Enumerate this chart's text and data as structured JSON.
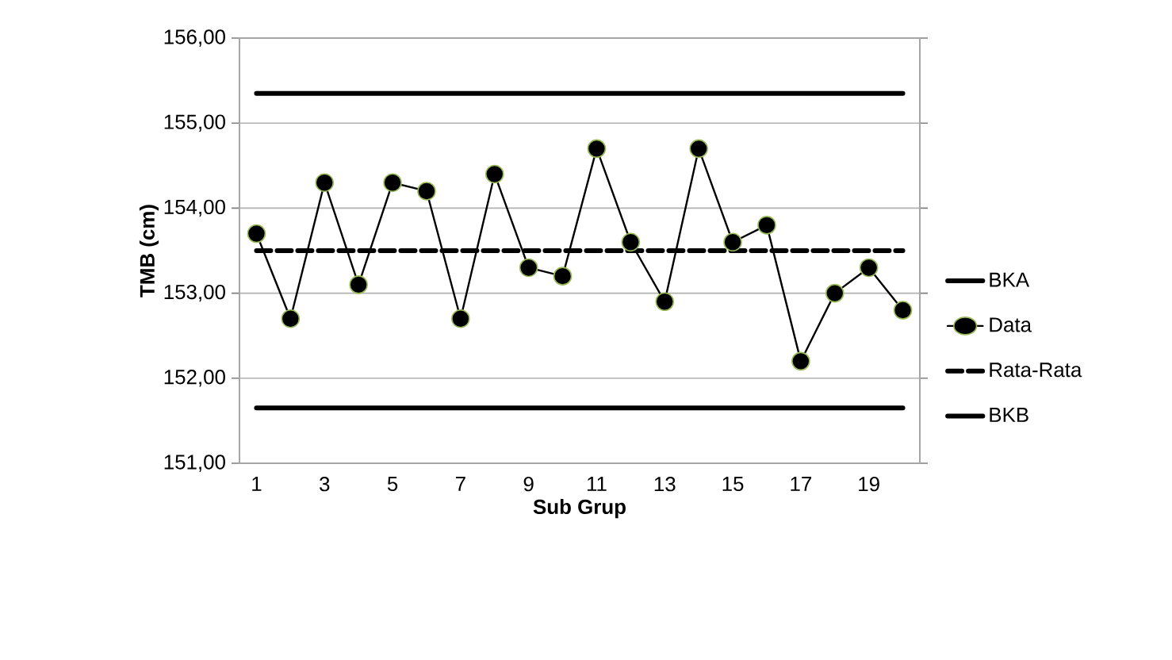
{
  "chart_data": {
    "type": "line",
    "xlabel": "Sub Grup",
    "ylabel": "TMB (cm)",
    "categories": [
      "1",
      null,
      "3",
      null,
      "5",
      null,
      "7",
      null,
      "9",
      null,
      "11",
      null,
      "13",
      null,
      "15",
      null,
      "17",
      null,
      "19",
      null
    ],
    "ylim": [
      151,
      156
    ],
    "yticks": [
      {
        "value": 151,
        "label": "151,00"
      },
      {
        "value": 152,
        "label": "152,00"
      },
      {
        "value": 153,
        "label": "153,00"
      },
      {
        "value": 154,
        "label": "154,00"
      },
      {
        "value": 155,
        "label": "155,00"
      },
      {
        "value": 156,
        "label": "156,00"
      }
    ],
    "grid": "y",
    "legend": "right",
    "series": [
      {
        "name": "BKA",
        "color": "#000000",
        "marker": "none",
        "line_style": "solid",
        "values": [
          155.35,
          155.35,
          155.35,
          155.35,
          155.35,
          155.35,
          155.35,
          155.35,
          155.35,
          155.35,
          155.35,
          155.35,
          155.35,
          155.35,
          155.35,
          155.35,
          155.35,
          155.35,
          155.35,
          155.35
        ]
      },
      {
        "name": "Data",
        "color": "#000000",
        "marker": "circle",
        "line_style": "solid",
        "values": [
          153.7,
          152.7,
          154.3,
          153.1,
          154.3,
          154.2,
          152.7,
          154.4,
          153.3,
          153.2,
          154.7,
          153.6,
          152.9,
          154.7,
          153.6,
          153.8,
          152.2,
          153.0,
          153.3,
          152.8
        ]
      },
      {
        "name": "Rata-Rata",
        "color": "#000000",
        "marker": "none",
        "line_style": "dashed",
        "values": [
          153.5,
          153.5,
          153.5,
          153.5,
          153.5,
          153.5,
          153.5,
          153.5,
          153.5,
          153.5,
          153.5,
          153.5,
          153.5,
          153.5,
          153.5,
          153.5,
          153.5,
          153.5,
          153.5,
          153.5
        ]
      },
      {
        "name": "BKB",
        "color": "#000000",
        "marker": "none",
        "line_style": "solid",
        "values": [
          151.65,
          151.65,
          151.65,
          151.65,
          151.65,
          151.65,
          151.65,
          151.65,
          151.65,
          151.65,
          151.65,
          151.65,
          151.65,
          151.65,
          151.65,
          151.65,
          151.65,
          151.65,
          151.65,
          151.65
        ]
      }
    ]
  }
}
